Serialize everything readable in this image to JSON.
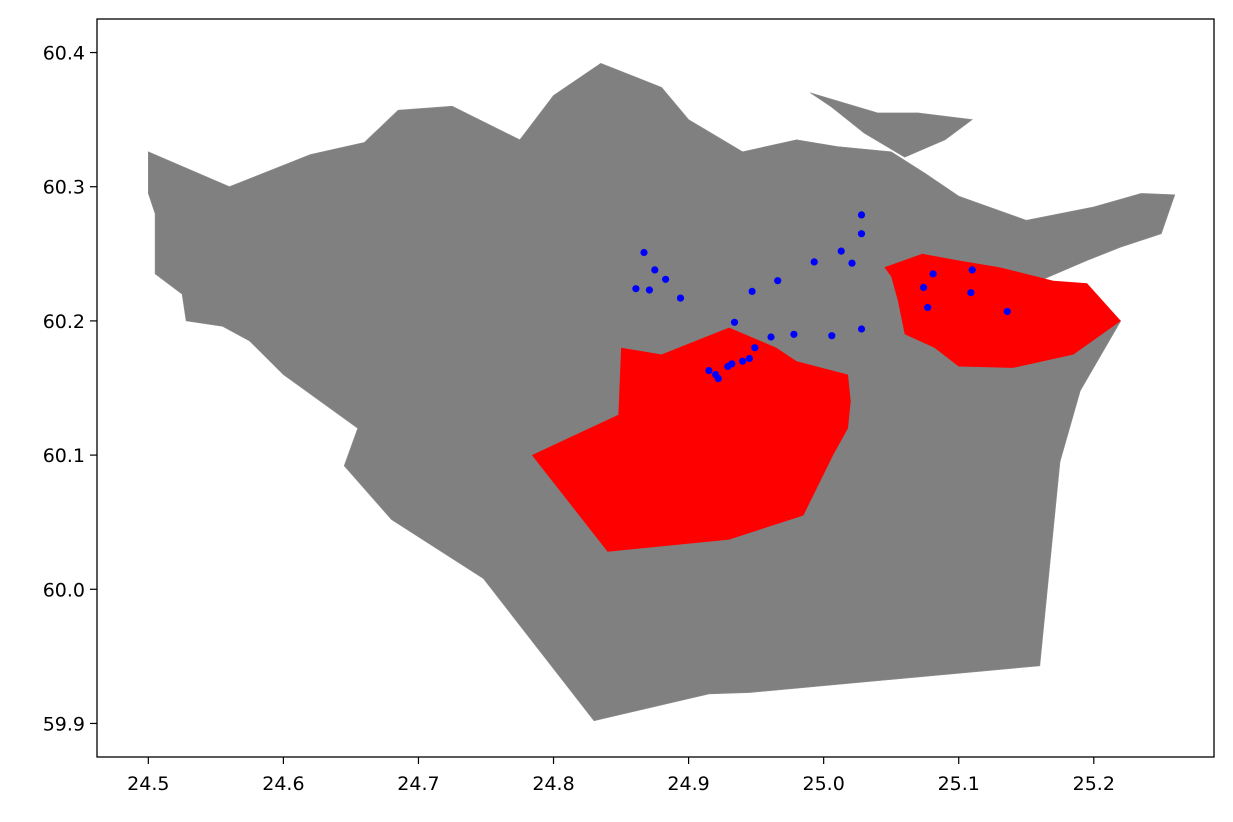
{
  "chart_data": {
    "type": "scatter",
    "title": "",
    "xlabel": "",
    "ylabel": "",
    "xlim": [
      24.462,
      25.289
    ],
    "ylim": [
      59.875,
      60.425
    ],
    "xticks": [
      "24.5",
      "24.6",
      "24.7",
      "24.8",
      "24.9",
      "25.0",
      "25.1",
      "25.2"
    ],
    "yticks": [
      "59.9",
      "60.0",
      "60.1",
      "60.2",
      "60.3",
      "60.4"
    ],
    "grid": false,
    "legend": "none",
    "colors": {
      "region_fill": "#808080",
      "region_edge": "#8c8c8c",
      "highlight_fill": "#ff0000",
      "point": "#0000ff"
    },
    "regions": {
      "description": "administrative districts (gray)",
      "outline": [
        [
          24.5,
          60.326
        ],
        [
          24.56,
          60.3
        ],
        [
          24.62,
          60.324
        ],
        [
          24.66,
          60.333
        ],
        [
          24.685,
          60.357
        ],
        [
          24.725,
          60.36
        ],
        [
          24.745,
          60.35
        ],
        [
          24.775,
          60.335
        ],
        [
          24.8,
          60.368
        ],
        [
          24.835,
          60.392
        ],
        [
          24.88,
          60.374
        ],
        [
          24.9,
          60.35
        ],
        [
          24.94,
          60.326
        ],
        [
          24.98,
          60.335
        ],
        [
          25.01,
          60.33
        ],
        [
          25.05,
          60.326
        ],
        [
          25.075,
          60.31
        ],
        [
          25.1,
          60.293
        ],
        [
          25.15,
          60.275
        ],
        [
          25.2,
          60.285
        ],
        [
          25.235,
          60.295
        ],
        [
          25.26,
          60.294
        ],
        [
          25.25,
          60.265
        ],
        [
          25.22,
          60.255
        ],
        [
          25.195,
          60.245
        ],
        [
          25.16,
          60.23
        ],
        [
          25.22,
          60.2
        ],
        [
          25.19,
          60.148
        ],
        [
          25.175,
          60.095
        ],
        [
          25.16,
          59.943
        ],
        [
          24.945,
          59.923
        ],
        [
          24.915,
          59.922
        ],
        [
          24.83,
          59.902
        ],
        [
          24.748,
          60.008
        ],
        [
          24.68,
          60.052
        ],
        [
          24.645,
          60.092
        ],
        [
          24.655,
          60.12
        ],
        [
          24.6,
          60.16
        ],
        [
          24.575,
          60.185
        ],
        [
          24.555,
          60.196
        ],
        [
          24.528,
          60.2
        ],
        [
          24.525,
          60.22
        ],
        [
          24.505,
          60.235
        ],
        [
          24.505,
          60.28
        ],
        [
          24.5,
          60.295
        ]
      ],
      "islands": [
        [
          [
            24.99,
            60.37
          ],
          [
            25.04,
            60.355
          ],
          [
            25.07,
            60.355
          ],
          [
            25.11,
            60.35
          ],
          [
            25.09,
            60.335
          ],
          [
            25.06,
            60.322
          ],
          [
            25.03,
            60.34
          ],
          [
            25.005,
            60.36
          ]
        ]
      ]
    },
    "highlighted_regions": [
      {
        "points": [
          [
            24.784,
            60.1
          ],
          [
            24.84,
            60.028
          ],
          [
            24.93,
            60.037
          ],
          [
            24.985,
            60.055
          ],
          [
            25.007,
            60.1
          ],
          [
            25.018,
            60.12
          ],
          [
            25.02,
            60.14
          ],
          [
            25.018,
            60.16
          ],
          [
            24.98,
            60.17
          ],
          [
            24.965,
            60.18
          ],
          [
            24.93,
            60.195
          ],
          [
            24.905,
            60.185
          ],
          [
            24.88,
            60.175
          ],
          [
            24.85,
            60.18
          ],
          [
            24.848,
            60.13
          ]
        ]
      },
      {
        "points": [
          [
            25.045,
            60.24
          ],
          [
            25.073,
            60.25
          ],
          [
            25.1,
            60.245
          ],
          [
            25.13,
            60.24
          ],
          [
            25.17,
            60.23
          ],
          [
            25.195,
            60.228
          ],
          [
            25.22,
            60.2
          ],
          [
            25.185,
            60.175
          ],
          [
            25.14,
            60.165
          ],
          [
            25.1,
            60.166
          ],
          [
            25.082,
            60.18
          ],
          [
            25.06,
            60.19
          ],
          [
            25.055,
            60.215
          ],
          [
            25.05,
            60.233
          ]
        ]
      }
    ],
    "points": [
      [
        24.867,
        60.251
      ],
      [
        24.875,
        60.238
      ],
      [
        24.883,
        60.231
      ],
      [
        24.861,
        60.224
      ],
      [
        24.871,
        60.223
      ],
      [
        24.894,
        60.217
      ],
      [
        24.947,
        60.222
      ],
      [
        24.966,
        60.23
      ],
      [
        24.993,
        60.244
      ],
      [
        25.013,
        60.252
      ],
      [
        25.021,
        60.243
      ],
      [
        25.028,
        60.279
      ],
      [
        25.028,
        60.265
      ],
      [
        24.934,
        60.199
      ],
      [
        24.978,
        60.19
      ],
      [
        24.961,
        60.188
      ],
      [
        24.949,
        60.18
      ],
      [
        25.006,
        60.189
      ],
      [
        25.028,
        60.194
      ],
      [
        24.945,
        60.172
      ],
      [
        24.94,
        60.17
      ],
      [
        24.932,
        60.168
      ],
      [
        24.929,
        60.166
      ],
      [
        24.915,
        60.163
      ],
      [
        24.92,
        60.16
      ],
      [
        24.922,
        60.157
      ],
      [
        25.074,
        60.225
      ],
      [
        25.081,
        60.235
      ],
      [
        25.11,
        60.238
      ],
      [
        25.109,
        60.221
      ],
      [
        25.077,
        60.21
      ],
      [
        25.136,
        60.207
      ]
    ]
  }
}
